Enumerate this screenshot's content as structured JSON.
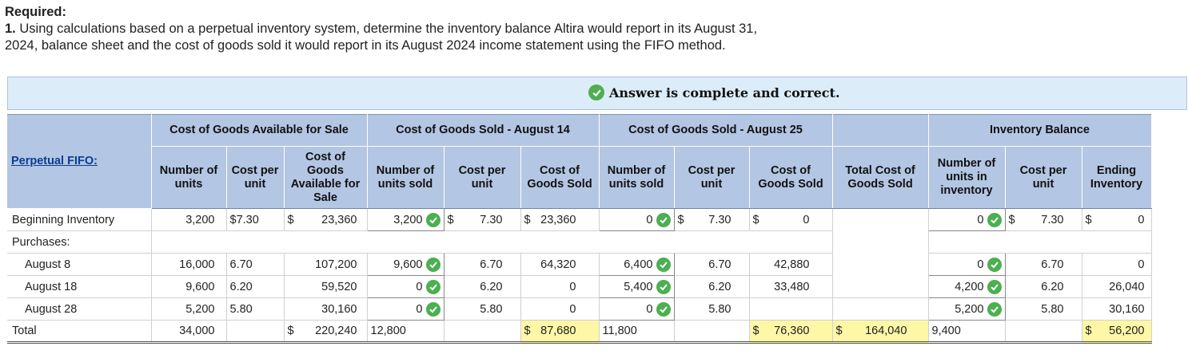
{
  "question": {
    "heading": "Required:",
    "number": "1.",
    "line1": "Using calculations based on a perpetual inventory system, determine the inventory balance Altira would report in its August 31,",
    "line2": "2024, balance sheet and the cost of goods sold it would report in its August 2024 income statement using the FIFO method."
  },
  "banner": {
    "text": "Answer is complete and correct.",
    "icon": "check-circle-icon"
  },
  "table": {
    "rowhead": "Perpetual FIFO:",
    "groups": {
      "available": "Cost of Goods Available for Sale",
      "aug14": "Cost of Goods Sold - August 14",
      "aug25": "Cost of Goods Sold - August 25",
      "balance": "Inventory Balance"
    },
    "sub": {
      "num_units": "Number of units",
      "cost_per_unit": "Cost per unit",
      "cogas": "Cost of Goods Available for Sale",
      "num_sold": "Number of units sold",
      "cost_per_unit2": "Cost per unit",
      "cogs": "Cost of Goods Sold",
      "total_cogs": "Total Cost of Goods Sold",
      "num_inventory": "Number of units in inventory",
      "ending": "Ending Inventory"
    },
    "rows": {
      "beg": {
        "label": "Beginning Inventory",
        "units": "3,200",
        "cost": "$7.30",
        "avail_sym": "$",
        "avail": "23,360",
        "s14_units": "3,200",
        "s14_cost_sym": "$",
        "s14_cost": "7.30",
        "s14_cogs_sym": "$",
        "s14_cogs": "23,360",
        "s25_units": "0",
        "s25_cost_sym": "$",
        "s25_cost": "7.30",
        "s25_cogs_sym": "$",
        "s25_cogs": "0",
        "inv_units": "0",
        "inv_cost_sym": "$",
        "inv_cost": "7.30",
        "end_sym": "$",
        "end": "0"
      },
      "purchases": {
        "label": "Purchases:"
      },
      "aug8": {
        "label": "August 8",
        "units": "16,000",
        "cost": "6.70",
        "avail": "107,200",
        "s14_units": "9,600",
        "s14_cost": "6.70",
        "s14_cogs": "64,320",
        "s25_units": "6,400",
        "s25_cost": "6.70",
        "s25_cogs": "42,880",
        "inv_units": "0",
        "inv_cost": "6.70",
        "end": "0"
      },
      "aug18": {
        "label": "August 18",
        "units": "9,600",
        "cost": "6.20",
        "avail": "59,520",
        "s14_units": "0",
        "s14_cost": "6.20",
        "s14_cogs": "0",
        "s25_units": "5,400",
        "s25_cost": "6.20",
        "s25_cogs": "33,480",
        "inv_units": "4,200",
        "inv_cost": "6.20",
        "end": "26,040"
      },
      "aug28": {
        "label": "August 28",
        "units": "5,200",
        "cost": "5.80",
        "avail": "30,160",
        "s14_units": "0",
        "s14_cost": "5.80",
        "s14_cogs": "0",
        "s25_units": "0",
        "s25_cost": "5.80",
        "s25_cogs": "",
        "inv_units": "5,200",
        "inv_cost": "5.80",
        "end": "30,160"
      },
      "total": {
        "label": "Total",
        "units": "34,000",
        "avail_sym": "$",
        "avail": "220,240",
        "s14_units": "12,800",
        "s14_cogs_sym": "$",
        "s14_cogs": "87,680",
        "s25_units": "11,800",
        "s25_cogs_sym": "$",
        "s25_cogs": "76,360",
        "total_cogs_sym": "$",
        "total_cogs": "164,040",
        "inv_units": "9,400",
        "end_sym": "$",
        "end": "56,200"
      }
    }
  },
  "colors": {
    "header_bg": "#b3c6e3",
    "banner_bg": "#dcecf8",
    "check_green": "#4caf50",
    "highlight": "#fdf7a6"
  }
}
